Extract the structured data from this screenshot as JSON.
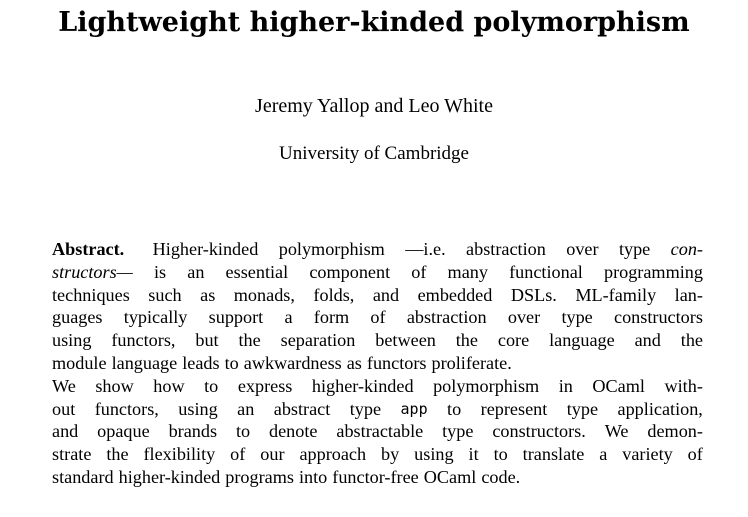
{
  "paper": {
    "title": "Lightweight higher-kinded polymorphism",
    "authors": "Jeremy Yallop and Leo White",
    "affiliation": "University of Cambridge"
  },
  "abstract": {
    "heading": "Abstract.",
    "lines": [
      "Higher-kinded polymorphism —i.e. abstraction over type con-",
      "structors— is an essential component of many functional programming",
      "techniques such as monads, folds, and embedded DSLs. ML-family lan-",
      "guages typically support a form of abstraction over type constructors",
      "using functors, but the separation between the core language and the",
      "module language leads to awkwardness as functors proliferate.",
      "We show how to express higher-kinded polymorphism in OCaml with-",
      "out functors, using an abstract type app to represent type application,",
      "and opaque brands to denote abstractable type constructors. We demon-",
      "strate the flexibility of our approach by using it to translate a variety of",
      "standard higher-kinded programs into functor-free OCaml code."
    ]
  }
}
